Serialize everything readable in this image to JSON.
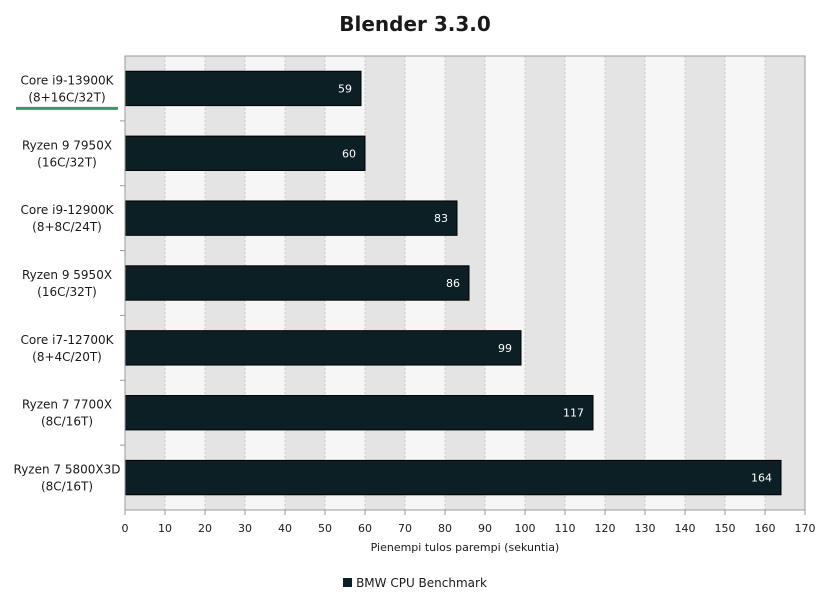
{
  "chart_data": {
    "type": "bar",
    "orientation": "horizontal",
    "title": "Blender 3.3.0",
    "xlabel": "Pienempi tulos parempi (sekuntia)",
    "xlim": [
      0,
      170
    ],
    "xticks": [
      0,
      10,
      20,
      30,
      40,
      50,
      60,
      70,
      80,
      90,
      100,
      110,
      120,
      130,
      140,
      150,
      160,
      170
    ],
    "categories": [
      [
        "Core i9-13900K",
        "(8+16C/32T)"
      ],
      [
        "Ryzen 9 7950X",
        "(16C/32T)"
      ],
      [
        "Core i9-12900K",
        "(8+8C/24T)"
      ],
      [
        "Ryzen 9 5950X",
        "(16C/32T)"
      ],
      [
        "Core i7-12700K",
        "(8+4C/20T)"
      ],
      [
        "Ryzen 7 7700X",
        "(8C/16T)"
      ],
      [
        "Ryzen 7 5800X3D",
        "(8C/16T)"
      ]
    ],
    "series": [
      {
        "name": "BMW CPU Benchmark",
        "values": [
          59,
          60,
          83,
          86,
          99,
          117,
          164
        ]
      }
    ],
    "highlighted_category_index": 0,
    "colors": {
      "bar": "#0c1f24",
      "highlight_underline": "#2f9e57",
      "band_dark": "#e4e4e4",
      "band_light": "#f6f6f6"
    },
    "grid": true,
    "legend_position": "bottom"
  }
}
